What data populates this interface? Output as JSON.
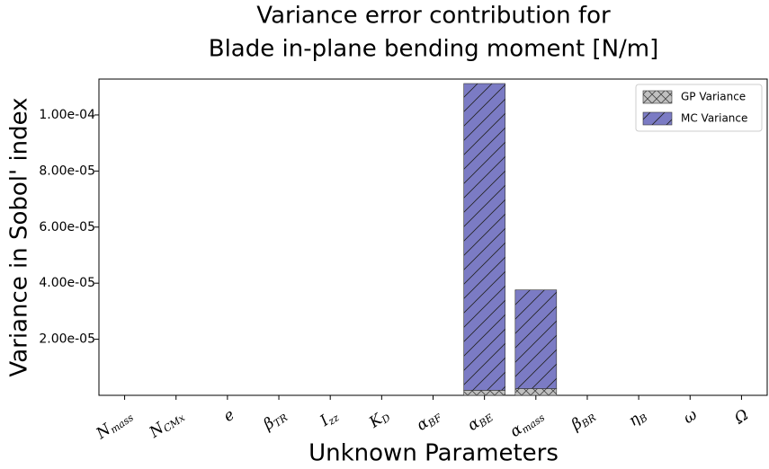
{
  "chart_data": {
    "type": "stacked_bar",
    "title": [
      "Variance error contribution for",
      "Blade in-plane bending moment [N/m]"
    ],
    "xlabel": "Unknown Parameters",
    "ylabel": "Variance in Sobol' index",
    "categories": [
      "Nmass",
      "NCMx",
      "e",
      "βTR",
      "Izz",
      "KD",
      "αBF",
      "αBE",
      "αmass",
      "βBR",
      "ηB",
      "ω",
      "Ω"
    ],
    "series": [
      {
        "name": "GP Variance",
        "color": "#c0c0c0",
        "hatch": "cross",
        "values": [
          0,
          0,
          0,
          0,
          0,
          0,
          0,
          1.8e-06,
          2.4e-06,
          0,
          0,
          0,
          0
        ]
      },
      {
        "name": "MC Variance",
        "color": "#7b7bc4",
        "hatch": "diagonal",
        "values": [
          0,
          0,
          0,
          0,
          0,
          0,
          0,
          0.0001094,
          3.52e-05,
          0,
          0,
          0,
          0
        ]
      }
    ],
    "ylim": [
      0,
      0.0001128
    ],
    "yticks": [
      {
        "value": 2e-05,
        "label": "2.00e-05"
      },
      {
        "value": 4e-05,
        "label": "4.00e-05"
      },
      {
        "value": 6e-05,
        "label": "6.00e-05"
      },
      {
        "value": 8e-05,
        "label": "8.00e-05"
      },
      {
        "value": 0.0001,
        "label": "1.00e-04"
      }
    ],
    "legend": "upper right"
  }
}
